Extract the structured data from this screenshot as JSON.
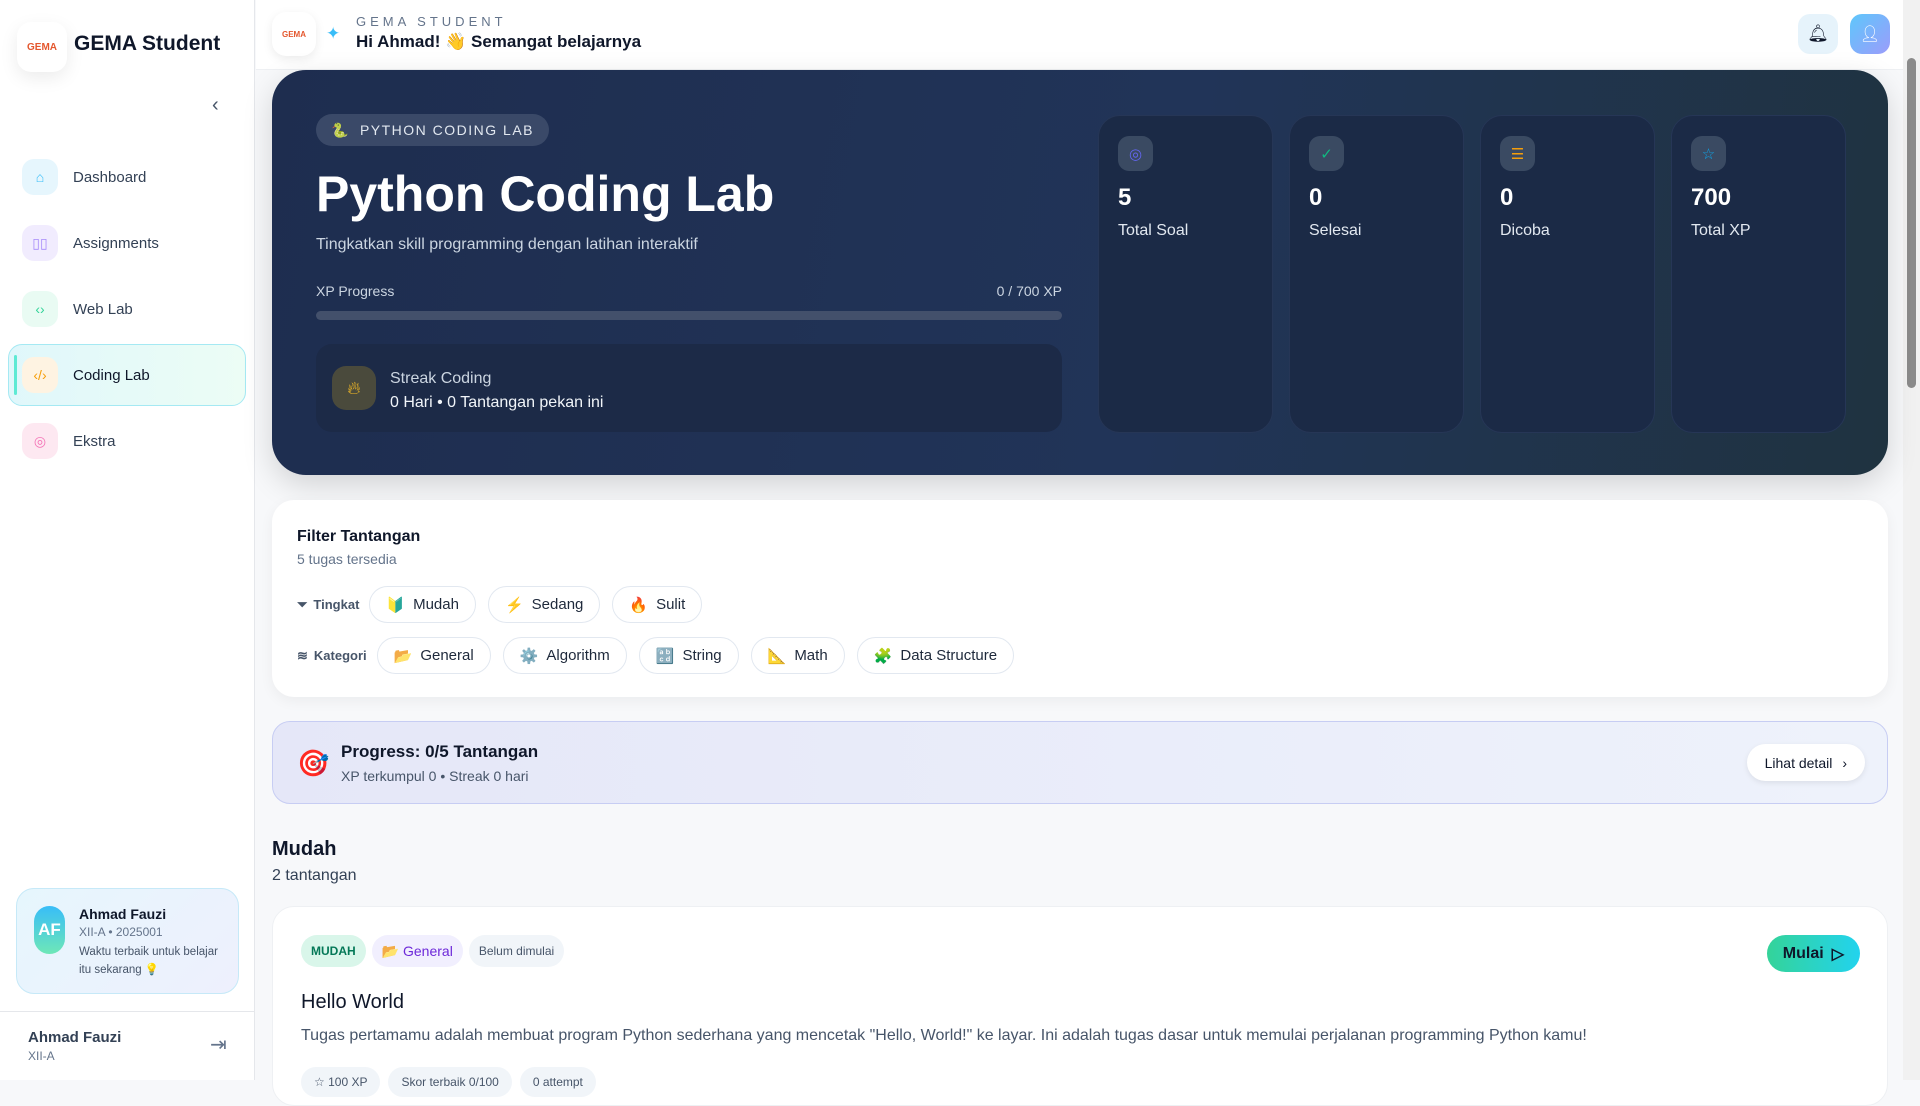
{
  "sidebar": {
    "brand": "GEMA Student",
    "logo_text": "GEMA",
    "items": [
      {
        "label": "Dashboard",
        "icon": "home-icon",
        "color": "#38bdf8",
        "bg": "#e6f6fd"
      },
      {
        "label": "Assignments",
        "icon": "book-open-icon",
        "color": "#a78bfa",
        "bg": "#f1ecfe"
      },
      {
        "label": "Web Lab",
        "icon": "code-icon",
        "color": "#34d399",
        "bg": "#e9fbf3"
      },
      {
        "label": "Coding Lab",
        "icon": "code-slash-icon",
        "color": "#f59e0b",
        "bg": "#fef3e2",
        "active": true
      },
      {
        "label": "Ekstra",
        "icon": "target-icon",
        "color": "#f472b6",
        "bg": "#fde8f1"
      }
    ],
    "profile": {
      "initials": "AF",
      "name": "Ahmad Fauzi",
      "meta": "XII-A • 2025001",
      "quote": "Waktu terbaik untuk belajar itu sekarang 💡"
    },
    "footer": {
      "name": "Ahmad Fauzi",
      "class": "XII-A"
    }
  },
  "header": {
    "subtitle": "GEMA STUDENT",
    "greeting": "Hi Ahmad! 👋 Semangat belajarnya"
  },
  "hero": {
    "badge": "PYTHON CODING LAB",
    "badge_icon": "🐍",
    "title": "Python Coding Lab",
    "description": "Tingkatkan skill programming dengan latihan interaktif",
    "xp_label": "XP Progress",
    "xp_value": "0 / 700 XP",
    "xp_fraction": 0,
    "streak_title": "Streak Coding",
    "streak_text": "0 Hari • 0 Tantangan pekan ini",
    "stats": [
      {
        "value": "5",
        "label": "Total Soal",
        "icon": "target-icon",
        "color": "#6366f1"
      },
      {
        "value": "0",
        "label": "Selesai",
        "icon": "check-circle-icon",
        "color": "#10b981"
      },
      {
        "value": "0",
        "label": "Dicoba",
        "icon": "list-check-icon",
        "color": "#f59e0b"
      },
      {
        "value": "700",
        "label": "Total XP",
        "icon": "star-icon",
        "color": "#0ea5e9"
      }
    ]
  },
  "filter": {
    "title": "Filter Tantangan",
    "subtitle": "5 tugas tersedia",
    "level_label": "Tingkat",
    "category_label": "Kategori",
    "levels": [
      {
        "icon": "🔰",
        "label": "Mudah"
      },
      {
        "icon": "⚡",
        "label": "Sedang"
      },
      {
        "icon": "🔥",
        "label": "Sulit"
      }
    ],
    "categories": [
      {
        "icon": "📂",
        "label": "General"
      },
      {
        "icon": "⚙️",
        "label": "Algorithm"
      },
      {
        "icon": "🔡",
        "label": "String"
      },
      {
        "icon": "📐",
        "label": "Math"
      },
      {
        "icon": "🧩",
        "label": "Data Structure"
      }
    ]
  },
  "progress": {
    "icon": "🎯",
    "title": "Progress: 0/5 Tantangan",
    "subtitle": "XP terkumpul 0 • Streak 0 hari",
    "detail_button": "Lihat detail"
  },
  "section": {
    "title": "Mudah",
    "count": "2 tantangan"
  },
  "task": {
    "difficulty": "MUDAH",
    "category": "📂 General",
    "status": "Belum dimulai",
    "start_button": "Mulai",
    "title": "Hello World",
    "description": "Tugas pertamamu adalah membuat program Python sederhana yang mencetak \"Hello, World!\" ke layar. Ini adalah tugas dasar untuk memulai perjalanan programming Python kamu!",
    "xp": "☆ 100 XP",
    "best_score": "Skor terbaik 0/100",
    "attempts": "0 attempt"
  }
}
